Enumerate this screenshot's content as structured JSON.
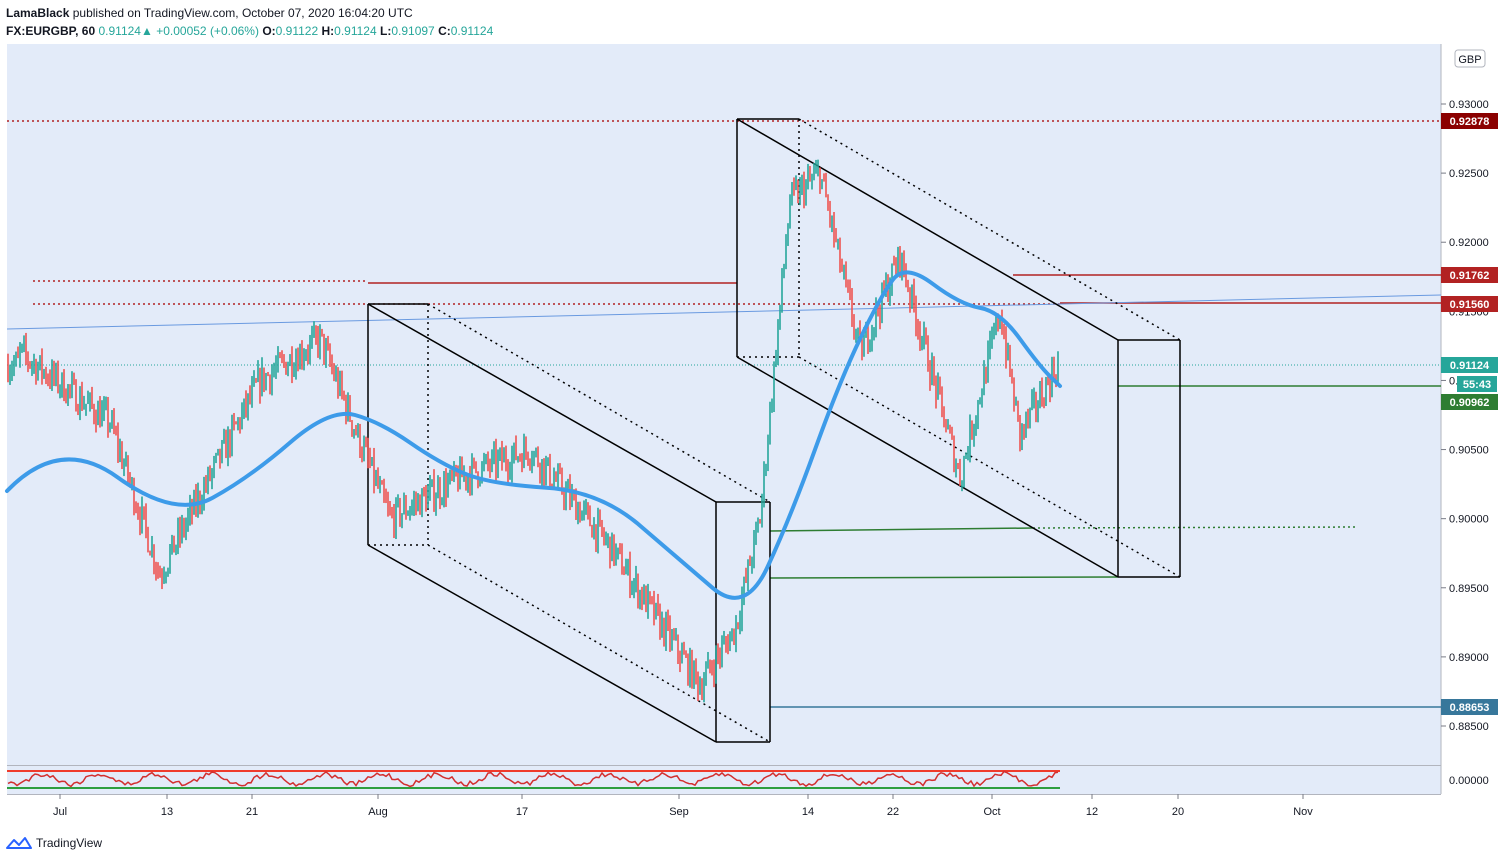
{
  "header": {
    "author": "LamaBlack",
    "published": "published on TradingView.com, October 07, 2020 16:04:20 UTC",
    "symbol": "FX:EURGBP, 60",
    "last": "0.91124",
    "change": "+0.00052 (+0.06%)",
    "o_label": "O:",
    "o_value": "0.91122",
    "h_label": "H:",
    "h_value": "0.91124",
    "l_label": "L:",
    "l_value": "0.91097",
    "c_label": "C:",
    "c_value": "0.91124"
  },
  "footer": {
    "brand": "TradingView"
  },
  "currency_badge": "GBP",
  "chart_data": {
    "type": "line",
    "symbol": "EURGBP",
    "timeframe": "60",
    "ylim": [
      0.8835,
      0.9315
    ],
    "y_ticks": [
      "0.93000",
      "0.92500",
      "0.92000",
      "0.91500",
      "0.91000",
      "0.90500",
      "0.90000",
      "0.89500",
      "0.89000",
      "0.88500"
    ],
    "x_ticks": [
      "Jul",
      "13",
      "21",
      "Aug",
      "17",
      "Sep",
      "14",
      "22",
      "Oct",
      "12",
      "20",
      "Nov"
    ],
    "price_series": {
      "x": [
        "Jun 29",
        "Jul 6",
        "Jul 13",
        "Jul 21",
        "Jul 28",
        "Aug 3",
        "Aug 10",
        "Aug 17",
        "Aug 24",
        "Aug 31",
        "Sep 3",
        "Sep 7",
        "Sep 11",
        "Sep 14",
        "Sep 18",
        "Sep 22",
        "Sep 28",
        "Oct 1",
        "Oct 5",
        "Oct 7"
      ],
      "values": [
        0.912,
        0.907,
        0.896,
        0.91,
        0.913,
        0.9,
        0.903,
        0.905,
        0.898,
        0.888,
        0.892,
        0.9,
        0.923,
        0.925,
        0.912,
        0.919,
        0.903,
        0.915,
        0.906,
        0.9112
      ]
    },
    "moving_average": {
      "x": [
        "Jun 29",
        "Jul 6",
        "Jul 13",
        "Jul 21",
        "Jul 28",
        "Aug 3",
        "Aug 10",
        "Aug 17",
        "Aug 24",
        "Aug 31",
        "Sep 7",
        "Sep 11",
        "Sep 14",
        "Sep 18",
        "Sep 22",
        "Sep 28",
        "Oct 1",
        "Oct 5",
        "Oct 7"
      ],
      "values": [
        0.902,
        0.906,
        0.9,
        0.903,
        0.908,
        0.907,
        0.904,
        0.9025,
        0.902,
        0.897,
        0.893,
        0.9,
        0.91,
        0.916,
        0.9185,
        0.9155,
        0.915,
        0.911,
        0.9096
      ]
    },
    "price_labels": [
      {
        "value": "0.92878",
        "color": "#8b0000"
      },
      {
        "value": "0.91762",
        "color": "#b22222"
      },
      {
        "value": "0.91560",
        "color": "#b22222"
      },
      {
        "value": "0.91124",
        "color": "#26a69a"
      },
      {
        "value": "55:43",
        "color": "#26a69a"
      },
      {
        "value": "0.90962",
        "color": "#2e7d32"
      },
      {
        "value": "0.88653",
        "color": "#37779b"
      }
    ],
    "oscillator": {
      "y_tick": "0.00000"
    },
    "colors": {
      "background": "#e3ebf9",
      "ma": "#3d9be9",
      "up": "#26a69a",
      "down": "#ef5350",
      "resistance": "#b22222",
      "support": "#2e7d32"
    }
  }
}
